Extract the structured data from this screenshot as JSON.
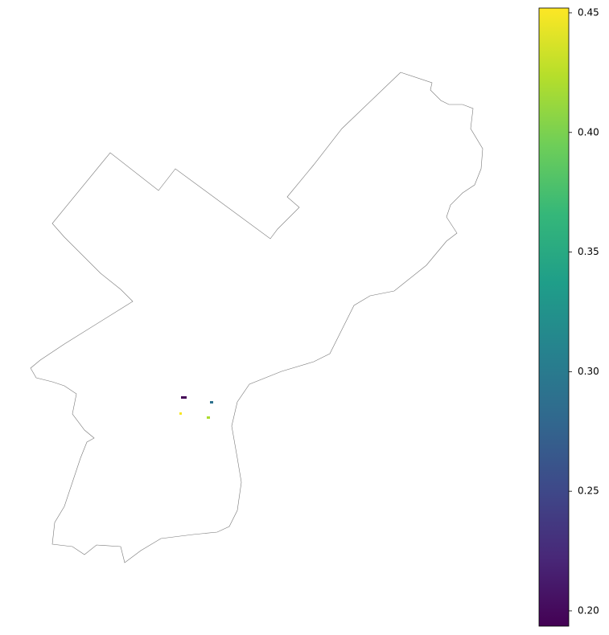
{
  "chart_data": {
    "type": "choropleth",
    "colormap": "viridis",
    "values": [
      0.195,
      0.29,
      0.45,
      0.42
    ],
    "clim": [
      0.1936,
      0.452
    ],
    "cticks": [
      {
        "value": 0.2,
        "label": "0.20"
      },
      0.25,
      {
        "value": 0.3,
        "label": "0.30"
      },
      0.35,
      {
        "value": 0.4,
        "label": "0.40"
      },
      0.45
    ]
  }
}
